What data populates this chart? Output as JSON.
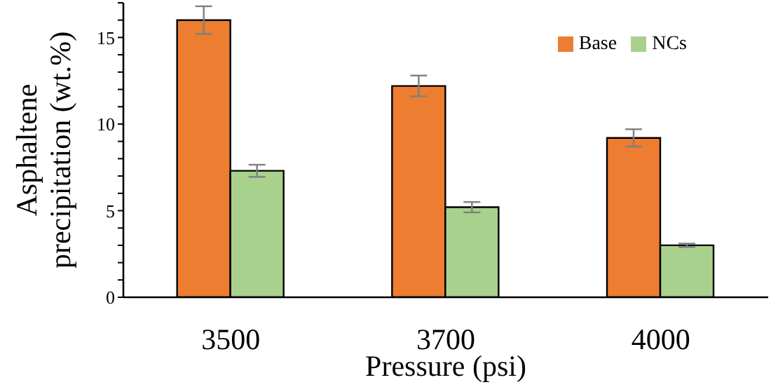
{
  "chart_data": {
    "type": "bar",
    "xlabel": "Pressure (psi)",
    "ylabel": "Asphaltene precipitation (wt.%)",
    "categories": [
      "3500",
      "3700",
      "4000"
    ],
    "series": [
      {
        "name": "Base",
        "color": "#ed7d31",
        "values": [
          16.0,
          12.2,
          9.2
        ],
        "errors": [
          0.8,
          0.6,
          0.5
        ]
      },
      {
        "name": "NCs",
        "color": "#a9d18e",
        "values": [
          7.3,
          5.2,
          3.0
        ],
        "errors": [
          0.35,
          0.3,
          0.1
        ]
      }
    ],
    "ylim": [
      0,
      17
    ],
    "yticks": [
      0,
      {
        "value": 1,
        "label": null
      },
      {
        "value": 2,
        "label": null
      },
      {
        "value": 3,
        "label": null
      },
      {
        "value": 4,
        "label": null
      },
      5,
      {
        "value": 6,
        "label": null
      },
      {
        "value": 7,
        "label": null
      },
      {
        "value": 8,
        "label": null
      },
      {
        "value": 9,
        "label": null
      },
      10,
      {
        "value": 11,
        "label": null
      },
      {
        "value": 12,
        "label": null
      },
      {
        "value": 13,
        "label": null
      },
      {
        "value": 14,
        "label": null
      },
      15,
      {
        "value": 16,
        "label": null
      },
      {
        "value": 17,
        "label": null
      }
    ],
    "grid": false,
    "legend": "top right"
  }
}
